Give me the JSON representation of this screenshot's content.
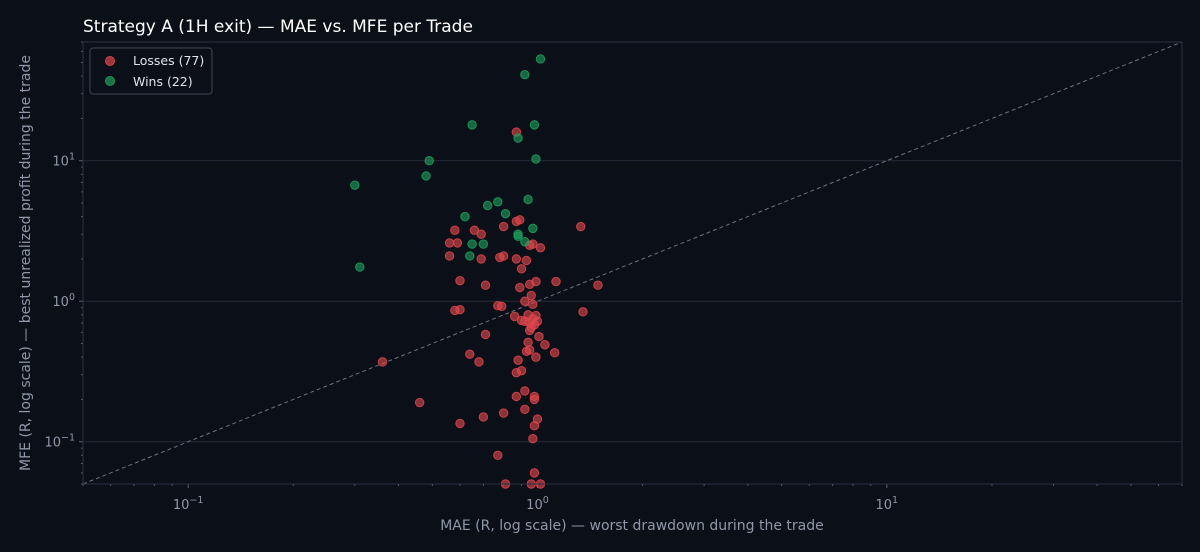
{
  "chart_data": {
    "type": "scatter",
    "title": "Strategy A (1H exit) — MAE vs. MFE per Trade",
    "xlabel": "MAE (R, log scale) — worst drawdown during the trade",
    "ylabel": "MFE (R, log scale) — best unrealized profit during the trade",
    "xscale": "log",
    "yscale": "log",
    "xlim": [
      0.05,
      70
    ],
    "ylim": [
      0.05,
      70
    ],
    "xticks": [
      {
        "value": 0.1,
        "base": "10",
        "exp": "−1"
      },
      {
        "value": 1,
        "base": "10",
        "exp": "0"
      },
      {
        "value": 10,
        "base": "10",
        "exp": "1"
      }
    ],
    "yticks": [
      {
        "value": 0.1,
        "base": "10",
        "exp": "−1"
      },
      {
        "value": 1,
        "base": "10",
        "exp": "0"
      },
      {
        "value": 10,
        "base": "10",
        "exp": "1"
      }
    ],
    "grid": true,
    "diagonal": "y = x reference (dashed)",
    "legend": {
      "position": "top-left"
    },
    "series": [
      {
        "name": "Losses (77)",
        "color": "#e0474c",
        "points": [
          [
            0.87,
            16.0
          ],
          [
            0.89,
            3.8
          ],
          [
            0.87,
            3.7
          ],
          [
            1.33,
            3.4
          ],
          [
            0.8,
            3.4
          ],
          [
            0.66,
            3.2
          ],
          [
            0.58,
            3.2
          ],
          [
            0.69,
            3.0
          ],
          [
            0.56,
            2.6
          ],
          [
            0.59,
            2.6
          ],
          [
            0.97,
            2.55
          ],
          [
            0.95,
            2.5
          ],
          [
            1.02,
            2.4
          ],
          [
            0.56,
            2.1
          ],
          [
            0.78,
            2.05
          ],
          [
            0.8,
            2.1
          ],
          [
            0.69,
            2.0
          ],
          [
            0.87,
            2.0
          ],
          [
            0.93,
            1.95
          ],
          [
            0.9,
            1.7
          ],
          [
            0.6,
            1.4
          ],
          [
            0.99,
            1.38
          ],
          [
            0.95,
            1.32
          ],
          [
            1.13,
            1.38
          ],
          [
            1.49,
            1.3
          ],
          [
            0.71,
            1.3
          ],
          [
            0.89,
            1.25
          ],
          [
            0.96,
            1.1
          ],
          [
            0.92,
            1.0
          ],
          [
            0.77,
            0.93
          ],
          [
            0.79,
            0.92
          ],
          [
            0.97,
            0.95
          ],
          [
            0.58,
            0.86
          ],
          [
            0.6,
            0.87
          ],
          [
            1.35,
            0.84
          ],
          [
            0.94,
            0.8
          ],
          [
            0.99,
            0.79
          ],
          [
            0.97,
            0.75
          ],
          [
            0.9,
            0.73
          ],
          [
            1.0,
            0.72
          ],
          [
            0.92,
            0.72
          ],
          [
            0.95,
            0.7
          ],
          [
            0.98,
            0.68
          ],
          [
            0.96,
            0.65
          ],
          [
            0.95,
            0.62
          ],
          [
            0.71,
            0.58
          ],
          [
            0.94,
            0.51
          ],
          [
            1.05,
            0.49
          ],
          [
            1.12,
            0.43
          ],
          [
            0.95,
            0.45
          ],
          [
            0.99,
            0.4
          ],
          [
            0.64,
            0.42
          ],
          [
            0.88,
            0.38
          ],
          [
            0.68,
            0.37
          ],
          [
            0.36,
            0.37
          ],
          [
            0.9,
            0.32
          ],
          [
            0.87,
            0.31
          ],
          [
            0.92,
            0.23
          ],
          [
            0.98,
            0.21
          ],
          [
            0.87,
            0.21
          ],
          [
            0.98,
            0.2
          ],
          [
            0.46,
            0.19
          ],
          [
            0.92,
            0.17
          ],
          [
            0.8,
            0.16
          ],
          [
            0.7,
            0.15
          ],
          [
            1.0,
            0.145
          ],
          [
            0.6,
            0.135
          ],
          [
            0.98,
            0.13
          ],
          [
            0.97,
            0.105
          ],
          [
            0.77,
            0.08
          ],
          [
            0.98,
            0.06
          ],
          [
            0.96,
            0.05
          ],
          [
            1.02,
            0.05
          ],
          [
            0.81,
            0.05
          ],
          [
            0.93,
            0.44
          ],
          [
            0.86,
            0.78
          ],
          [
            1.01,
            0.56
          ]
        ]
      },
      {
        "name": "Wins (22)",
        "color": "#1fa05c",
        "points": [
          [
            1.02,
            53.0
          ],
          [
            0.92,
            41.0
          ],
          [
            0.65,
            18.0
          ],
          [
            0.98,
            18.0
          ],
          [
            0.88,
            14.5
          ],
          [
            0.99,
            10.3
          ],
          [
            0.49,
            10.0
          ],
          [
            0.3,
            6.7
          ],
          [
            0.48,
            7.8
          ],
          [
            0.94,
            5.3
          ],
          [
            0.77,
            5.1
          ],
          [
            0.72,
            4.8
          ],
          [
            0.81,
            4.2
          ],
          [
            0.62,
            4.0
          ],
          [
            0.97,
            3.3
          ],
          [
            0.88,
            3.0
          ],
          [
            0.88,
            2.9
          ],
          [
            0.92,
            2.65
          ],
          [
            0.65,
            2.55
          ],
          [
            0.7,
            2.55
          ],
          [
            0.64,
            2.1
          ],
          [
            0.31,
            1.75
          ]
        ]
      }
    ]
  }
}
